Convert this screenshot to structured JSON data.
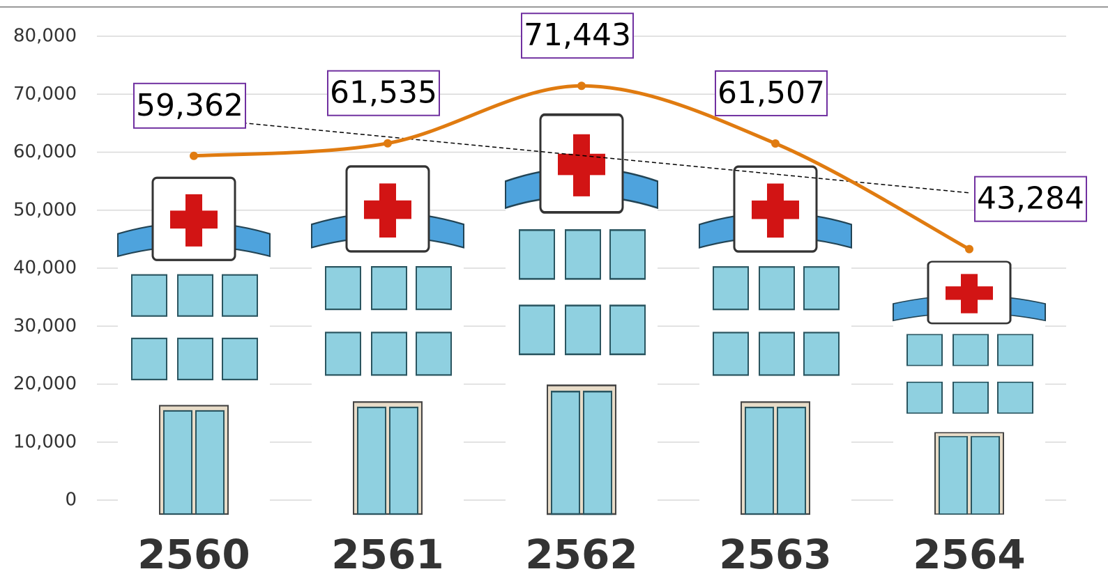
{
  "chart_data": {
    "type": "pictograph_line",
    "categories": [
      "2560",
      "2561",
      "2562",
      "2563",
      "2564"
    ],
    "values": [
      59362,
      61535,
      71443,
      61507,
      43284
    ],
    "value_labels": [
      "59,362",
      "61,535",
      "71,443",
      "61,507",
      "43,284"
    ],
    "color": "#e07b10",
    "label_border_color": "#7030a0",
    "ylim": [
      0,
      80000
    ],
    "yticks": [
      0,
      {
        "value": 10000,
        "label": "10,000"
      },
      {
        "value": 20000,
        "label": "20,000"
      },
      {
        "value": 30000,
        "label": "30,000"
      },
      {
        "value": 40000,
        "label": "40,000"
      },
      {
        "value": 50000,
        "label": "50,000"
      },
      {
        "value": 60000,
        "label": "60,000"
      },
      {
        "value": 70000,
        "label": "70,000"
      },
      {
        "value": 80000,
        "label": "80,000"
      }
    ],
    "grid": true,
    "trendline": "linear"
  }
}
